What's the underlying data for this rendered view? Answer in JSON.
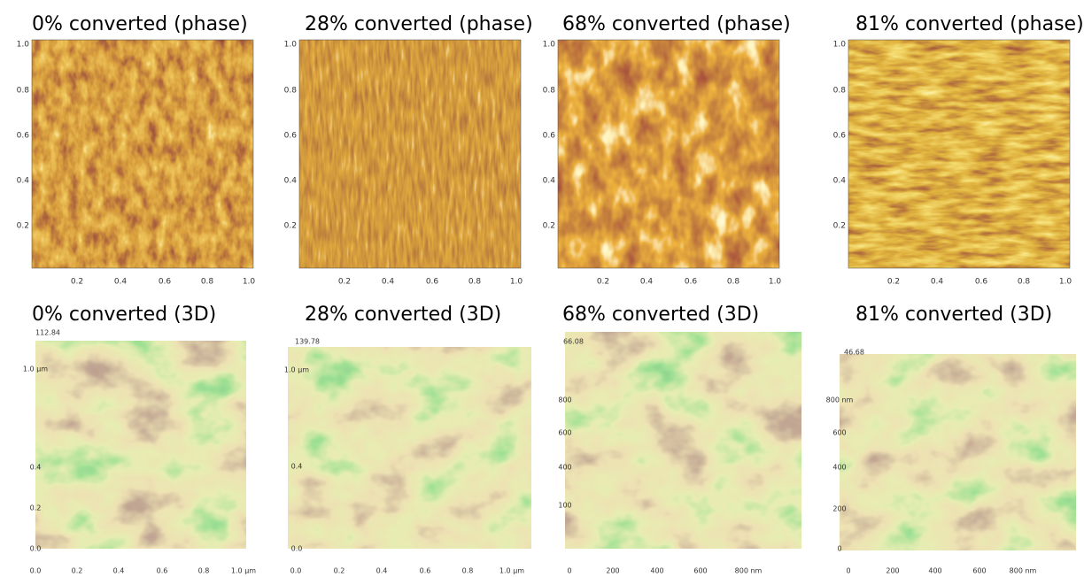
{
  "phase_panels": [
    {
      "title": "0% converted (phase)",
      "yticks": [
        "1.0",
        "0.8",
        "0.6",
        "0.4",
        "0.2"
      ],
      "xticks": [
        "0.2",
        "0.4",
        "0.6",
        "0.8",
        "1.0"
      ]
    },
    {
      "title": "28% converted (phase)",
      "yticks": [
        "1.0",
        "0.8",
        "0.6",
        "0.4",
        "0.2"
      ],
      "xticks": [
        "0.2",
        "0.4",
        "0.6",
        "0.8",
        "1.0"
      ]
    },
    {
      "title": "68% converted (phase)",
      "yticks": [
        "1.0",
        "0.8",
        "0.6",
        "0.4",
        "0.2"
      ],
      "xticks": [
        "0.2",
        "0.4",
        "0.6",
        "0.8",
        "1.0"
      ]
    },
    {
      "title": "81% converted (phase)",
      "yticks": [
        "1.0",
        "0.8",
        "0.6",
        "0.4",
        "0.2"
      ],
      "xticks": [
        "0.2",
        "0.4",
        "0.6",
        "0.8",
        "1.0"
      ]
    }
  ],
  "surface_panels": [
    {
      "title": "0% converted (3D)",
      "zmax": "112.84",
      "left_ticks": [
        "1.0 µm",
        "0.4",
        "0.2",
        "0.0"
      ],
      "xticks": [
        "0.0",
        "0.2",
        "0.4",
        "0.6",
        "0.8",
        "1.0 µm"
      ]
    },
    {
      "title": "28% converted (3D)",
      "zmax": "139.78",
      "left_ticks": [
        "1.0 µm",
        "0.4",
        "0.0"
      ],
      "xticks": [
        "0.0",
        "0.2",
        "0.4",
        "0.6",
        "0.8",
        "1.0 µm"
      ]
    },
    {
      "title": "68% converted (3D)",
      "zmax": "66.08",
      "left_ticks": [
        "800",
        "600",
        "400",
        "100"
      ],
      "xticks": [
        "0",
        "200",
        "400",
        "600",
        "800 nm"
      ]
    },
    {
      "title": "81% converted (3D)",
      "zmax": "46.68",
      "left_ticks": [
        "800 nm",
        "600",
        "400",
        "200",
        "0"
      ],
      "xticks": [
        "0",
        "200",
        "400",
        "600",
        "800 nm"
      ]
    }
  ]
}
